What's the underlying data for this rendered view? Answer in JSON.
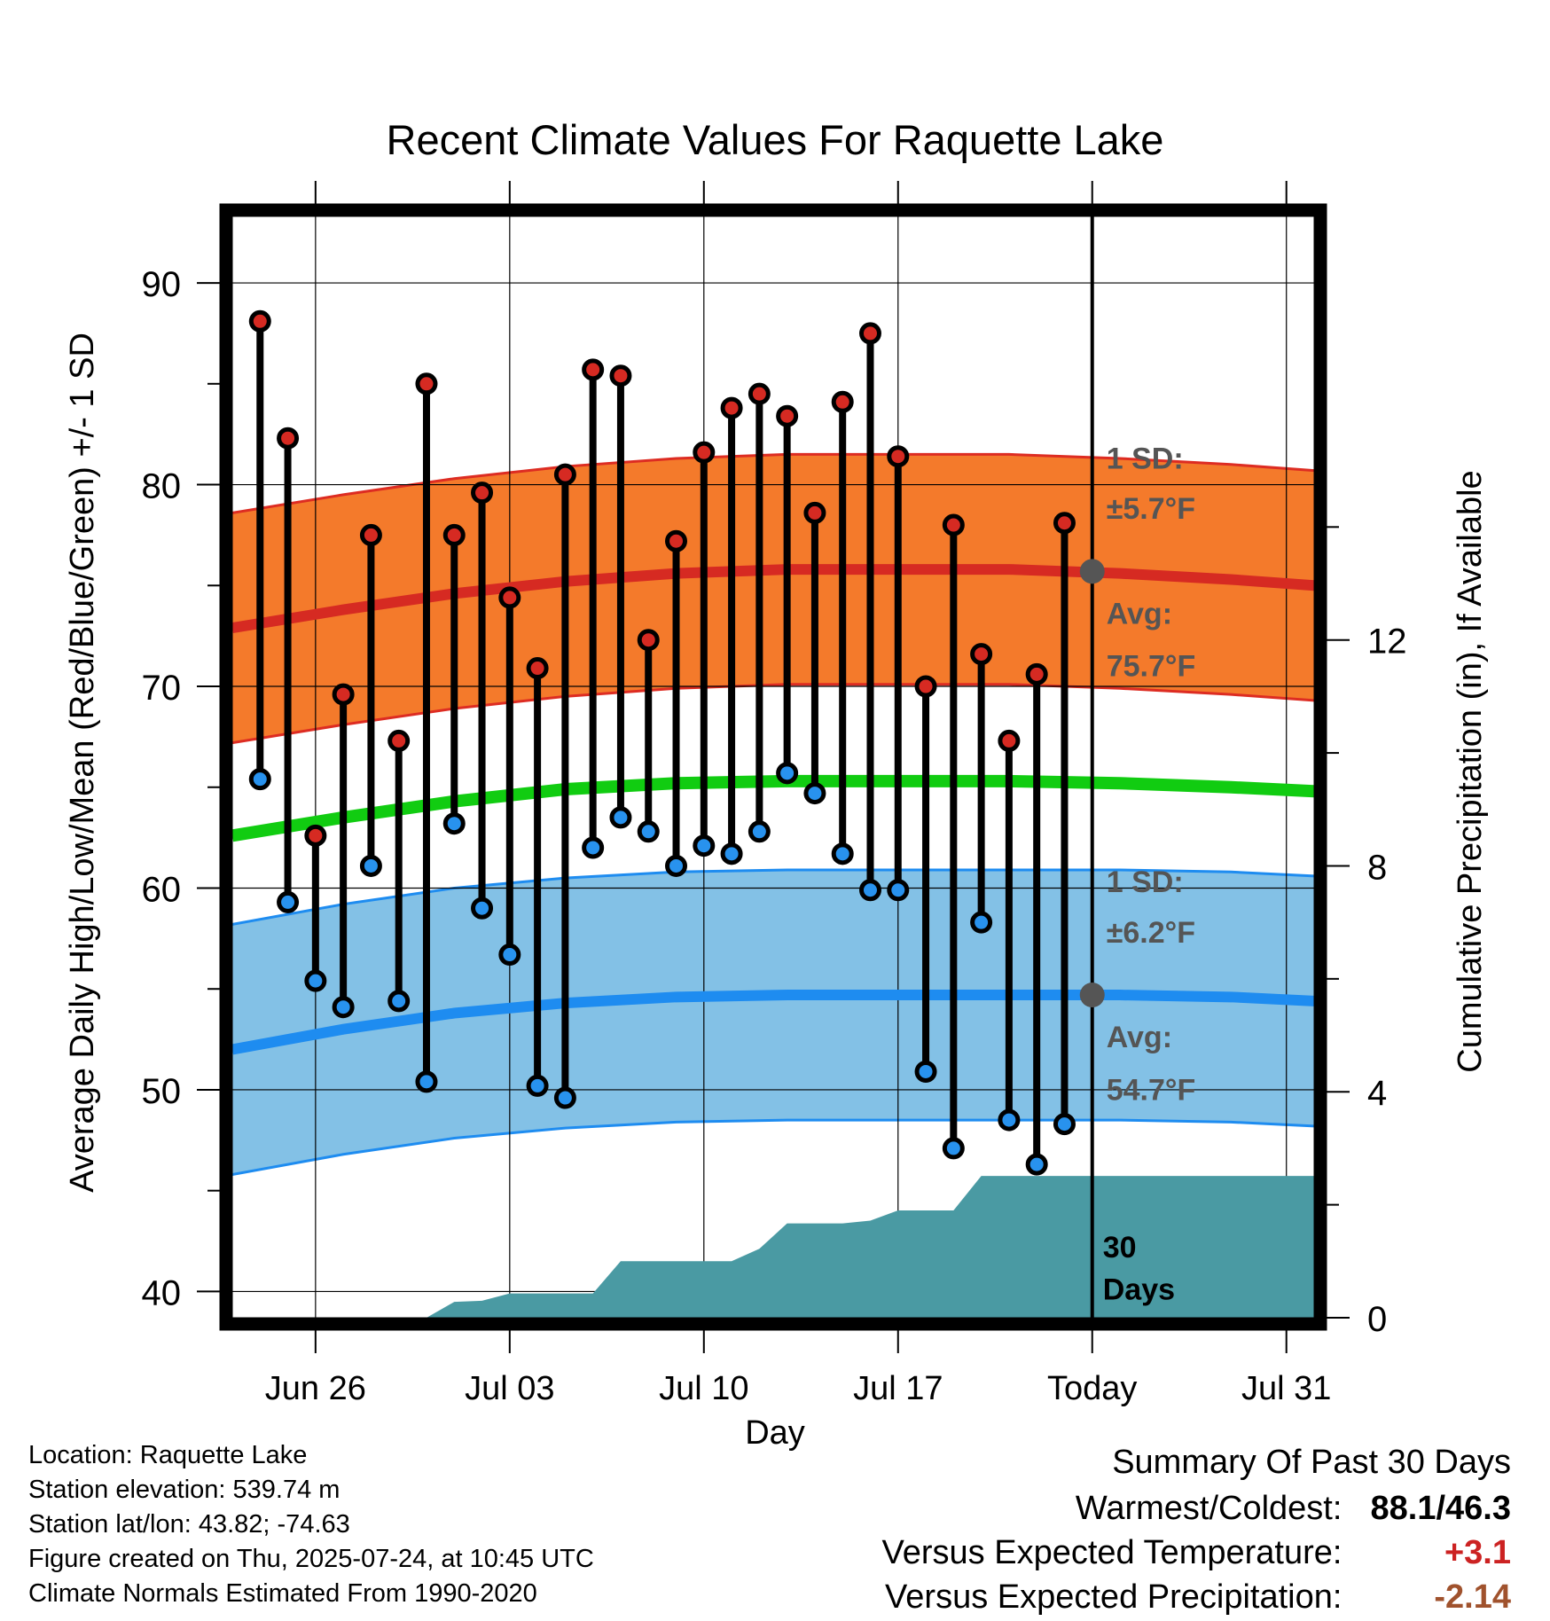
{
  "chart_data": {
    "type": "line",
    "title": "Recent Climate Values For Raquette Lake",
    "xlabel": "Day",
    "ylabel": "Average Daily High/Low/Mean (Red/Blue/Green) +/- 1 SD",
    "ylabel_right": "Cumulative Precipitation (in), If Available",
    "x_range": [
      "2025-06-23",
      "2025-08-01"
    ],
    "ylim": [
      38.7,
      93.3
    ],
    "ylim_right": [
      0,
      19.5
    ],
    "yticks": [
      40,
      50,
      60,
      70,
      80,
      90
    ],
    "yticks_right": [
      0,
      4,
      8,
      12
    ],
    "xticks": [
      {
        "date": "2025-06-26",
        "label": "Jun 26"
      },
      {
        "date": "2025-07-03",
        "label": "Jul 03"
      },
      {
        "date": "2025-07-10",
        "label": "Jul 10"
      },
      {
        "date": "2025-07-17",
        "label": "Jul 17"
      },
      {
        "date": "2025-07-24",
        "label": "Today"
      },
      {
        "date": "2025-07-31",
        "label": "Jul 31"
      }
    ],
    "grid": true,
    "today": "2025-07-24",
    "colors": {
      "high_band": "#f47a2b",
      "high_edge": "#dd2c22",
      "high_mean": "#d62a22",
      "low_band": "#83c1e6",
      "low_edge": "#1e8cf0",
      "low_mean": "#1e8cf0",
      "mean_line": "#11cc11",
      "precip": "#4a9aa3",
      "high_dot": "#d62a22",
      "low_dot": "#2892ee",
      "today_marker": "#555555",
      "annotation": "#555555",
      "warm_value": "#cc2222",
      "precip_value": "#a0522d"
    },
    "daily": {
      "dates": [
        "2025-06-24",
        "2025-06-25",
        "2025-06-26",
        "2025-06-27",
        "2025-06-28",
        "2025-06-29",
        "2025-06-30",
        "2025-07-01",
        "2025-07-02",
        "2025-07-03",
        "2025-07-04",
        "2025-07-05",
        "2025-07-06",
        "2025-07-07",
        "2025-07-08",
        "2025-07-09",
        "2025-07-10",
        "2025-07-11",
        "2025-07-12",
        "2025-07-13",
        "2025-07-14",
        "2025-07-15",
        "2025-07-16",
        "2025-07-17",
        "2025-07-18",
        "2025-07-19",
        "2025-07-20",
        "2025-07-21",
        "2025-07-22",
        "2025-07-23"
      ],
      "highs": [
        88.1,
        82.3,
        62.6,
        69.6,
        77.5,
        67.3,
        85.0,
        77.5,
        79.6,
        74.4,
        70.9,
        80.5,
        85.7,
        85.4,
        72.3,
        77.2,
        81.6,
        83.8,
        84.5,
        83.4,
        78.6,
        84.1,
        87.5,
        81.4,
        70.0,
        78.0,
        71.6,
        67.3,
        70.6,
        78.1
      ],
      "lows": [
        65.4,
        59.3,
        55.4,
        54.1,
        61.1,
        54.4,
        50.4,
        63.2,
        59.0,
        56.7,
        50.2,
        49.6,
        62.0,
        63.5,
        62.8,
        61.1,
        62.1,
        61.7,
        62.8,
        65.7,
        64.7,
        61.7,
        59.9,
        59.9,
        50.9,
        47.1,
        58.3,
        48.5,
        46.3,
        48.3
      ]
    },
    "normals": {
      "dates": [
        "2025-06-23",
        "2025-06-27",
        "2025-07-01",
        "2025-07-05",
        "2025-07-09",
        "2025-07-13",
        "2025-07-17",
        "2025-07-21",
        "2025-07-25",
        "2025-07-29",
        "2025-08-01"
      ],
      "high_mean": [
        72.9,
        73.8,
        74.6,
        75.2,
        75.6,
        75.8,
        75.8,
        75.8,
        75.6,
        75.3,
        75.0
      ],
      "high_sd": 5.7,
      "low_mean": [
        52.0,
        53.0,
        53.8,
        54.3,
        54.6,
        54.7,
        54.7,
        54.7,
        54.7,
        54.6,
        54.4
      ],
      "low_sd": 6.2,
      "mean": [
        62.6,
        63.5,
        64.3,
        64.9,
        65.2,
        65.3,
        65.3,
        65.3,
        65.2,
        65.0,
        64.8
      ]
    },
    "precip_cumulative": {
      "dates": [
        "2025-06-23",
        "2025-06-30",
        "2025-07-01",
        "2025-07-02",
        "2025-07-03",
        "2025-07-04",
        "2025-07-05",
        "2025-07-06",
        "2025-07-07",
        "2025-07-08",
        "2025-07-09",
        "2025-07-10",
        "2025-07-11",
        "2025-07-12",
        "2025-07-13",
        "2025-07-14",
        "2025-07-15",
        "2025-07-16",
        "2025-07-17",
        "2025-07-18",
        "2025-07-19",
        "2025-07-20",
        "2025-07-21",
        "2025-07-22",
        "2025-07-23",
        "2025-07-24",
        "2025-08-01"
      ],
      "values": [
        0,
        0,
        0.28,
        0.3,
        0.43,
        0.43,
        0.43,
        0.43,
        1.0,
        1.0,
        1.0,
        1.0,
        1.0,
        1.22,
        1.67,
        1.67,
        1.67,
        1.72,
        1.9,
        1.9,
        1.9,
        2.51,
        2.51,
        2.51,
        2.51,
        2.51,
        2.51
      ]
    },
    "annotations": {
      "high_sd_title": "1 SD:",
      "high_sd_value": "±5.7°F",
      "high_avg_title": "Avg:",
      "high_avg_value": "75.7°F",
      "low_sd_title": "1 SD:",
      "low_sd_value": "±6.2°F",
      "low_avg_title": "Avg:",
      "low_avg_value": "54.7°F",
      "precip_line1": "30",
      "precip_line2": "Days"
    }
  },
  "footer": {
    "location": "Location: Raquette Lake",
    "elevation": "Station elevation: 539.74 m",
    "latlon": "Station lat/lon: 43.82; -74.63",
    "created": "Figure created on Thu, 2025-07-24, at 10:45 UTC",
    "normals": "Climate Normals Estimated From 1990-2020"
  },
  "summary": {
    "title": "Summary Of Past 30 Days",
    "warm_cold_label": "Warmest/Coldest:",
    "warm_cold_value": "88.1/46.3",
    "temp_label": "Versus Expected Temperature:",
    "temp_value": "+3.1",
    "precip_label": "Versus Expected Precipitation:",
    "precip_value": "-2.14"
  }
}
